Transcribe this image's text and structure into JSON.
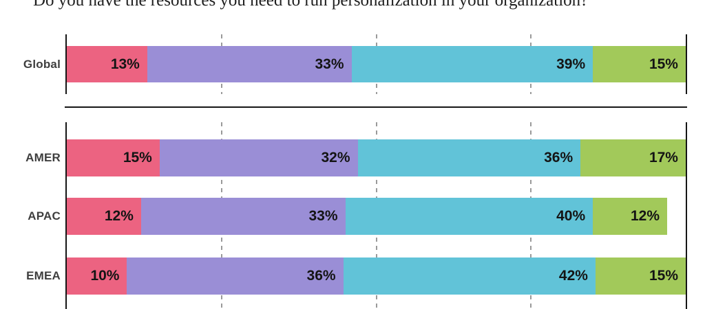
{
  "title": "Do you have the resources you need to run personalization in your organization?",
  "chart_data": {
    "type": "bar",
    "subtype": "horizontal-stacked",
    "title": "Do you have the resources you need to run personalization in your organization?",
    "categories": [
      "Global",
      "AMER",
      "APAC",
      "EMEA"
    ],
    "groups": [
      {
        "name": "global",
        "categories": [
          "Global"
        ]
      },
      {
        "name": "regions",
        "categories": [
          "AMER",
          "APAC",
          "EMEA"
        ]
      }
    ],
    "series": [
      {
        "name": "red",
        "color": "#EC6381",
        "values": [
          13,
          15,
          12,
          10
        ]
      },
      {
        "name": "purple",
        "color": "#9A8ED6",
        "values": [
          33,
          32,
          33,
          36
        ]
      },
      {
        "name": "teal",
        "color": "#61C3D8",
        "values": [
          39,
          36,
          40,
          42
        ]
      },
      {
        "name": "green",
        "color": "#A2C95A",
        "values": [
          15,
          17,
          12,
          15
        ]
      }
    ],
    "value_suffix": "%",
    "axis_range": [
      0,
      100
    ],
    "gridlines_pct": [
      25,
      50,
      75
    ],
    "grid_style": "dashed",
    "axis_color": "#151515",
    "gridline_color": "#9A9A9A",
    "value_label_color": "#141414",
    "row_label_color": "#3E3E3E",
    "legend": "none"
  }
}
